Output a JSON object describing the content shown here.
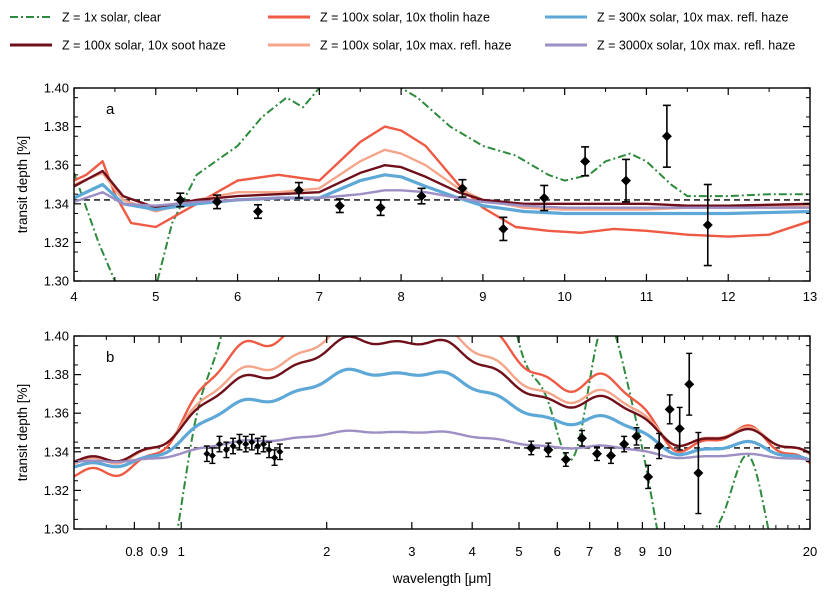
{
  "legend": [
    {
      "key": "clear1x",
      "label": "Z = 1x solar, clear",
      "color": "#2e8b3e",
      "dash": "8,3,2,3"
    },
    {
      "key": "soot100",
      "label": "Z = 100x solar, 10x soot haze",
      "color": "#6e0f1a",
      "dash": ""
    },
    {
      "key": "tholin100",
      "label": "Z = 100x solar, 10x tholin haze",
      "color": "#ee5a44",
      "dash": ""
    },
    {
      "key": "maxrefl100",
      "label": "Z = 100x solar, 10x max. refl. haze",
      "color": "#f4a58a",
      "dash": ""
    },
    {
      "key": "maxrefl300",
      "label": "Z = 300x solar, 10x max. refl. haze",
      "color": "#5ea8d8",
      "dash": ""
    },
    {
      "key": "maxrefl3000",
      "label": "Z = 3000x solar, 10x max. refl. haze",
      "color": "#9d8fc4",
      "dash": ""
    }
  ],
  "chart_data": [
    {
      "panel": "a",
      "type": "line",
      "x_scale": "linear",
      "xlim": [
        4,
        13
      ],
      "ylim": [
        1.3,
        1.4
      ],
      "ylabel": "transit depth [%]",
      "xlabel": "",
      "x_ticks": [
        "4",
        "5",
        "6",
        "7",
        "8",
        "9",
        "10",
        "11",
        "12",
        "13"
      ],
      "y_ticks": [
        "1.30",
        "1.32",
        "1.34",
        "1.36",
        "1.38",
        "1.40"
      ],
      "reference_line": 1.342,
      "series": [
        {
          "key": "clear1x",
          "x": [
            4.0,
            4.3,
            4.6,
            4.9,
            5.2,
            5.5,
            6.0,
            6.3,
            6.6,
            6.8,
            7.0,
            7.4,
            7.8,
            8.2,
            8.6,
            9.0,
            9.4,
            9.8,
            10.0,
            10.3,
            10.5,
            10.8,
            11.0,
            11.3,
            11.5,
            12.0,
            12.5,
            13.0
          ],
          "y": [
            1.356,
            1.32,
            1.29,
            1.28,
            1.33,
            1.355,
            1.37,
            1.385,
            1.395,
            1.39,
            1.4,
            1.42,
            1.405,
            1.395,
            1.38,
            1.37,
            1.365,
            1.355,
            1.352,
            1.355,
            1.362,
            1.366,
            1.362,
            1.35,
            1.344,
            1.344,
            1.345,
            1.345
          ]
        },
        {
          "key": "tholin100",
          "x": [
            4.0,
            4.15,
            4.35,
            4.5,
            4.7,
            5.0,
            5.5,
            6.0,
            6.5,
            7.0,
            7.5,
            7.8,
            8.0,
            8.3,
            8.7,
            9.0,
            9.4,
            9.8,
            10.2,
            10.6,
            11.0,
            11.5,
            12.0,
            12.5,
            13.0
          ],
          "y": [
            1.352,
            1.355,
            1.362,
            1.345,
            1.33,
            1.328,
            1.34,
            1.352,
            1.355,
            1.352,
            1.372,
            1.38,
            1.378,
            1.37,
            1.35,
            1.338,
            1.328,
            1.326,
            1.325,
            1.327,
            1.326,
            1.324,
            1.323,
            1.324,
            1.331
          ]
        },
        {
          "key": "maxrefl100",
          "x": [
            4.0,
            4.35,
            4.6,
            5.0,
            5.5,
            6.0,
            6.5,
            7.0,
            7.5,
            7.8,
            8.0,
            8.3,
            8.7,
            9.0,
            9.5,
            10.0,
            10.5,
            11.0,
            11.5,
            12.0,
            13.0
          ],
          "y": [
            1.35,
            1.356,
            1.342,
            1.336,
            1.342,
            1.346,
            1.346,
            1.348,
            1.362,
            1.368,
            1.366,
            1.36,
            1.348,
            1.342,
            1.338,
            1.337,
            1.337,
            1.337,
            1.338,
            1.338,
            1.339
          ]
        },
        {
          "key": "soot100",
          "x": [
            4.0,
            4.35,
            4.6,
            5.0,
            5.5,
            6.0,
            6.5,
            7.0,
            7.5,
            7.8,
            8.0,
            8.3,
            8.7,
            9.0,
            9.5,
            10.0,
            10.5,
            11.0,
            11.5,
            12.0,
            13.0
          ],
          "y": [
            1.349,
            1.357,
            1.344,
            1.338,
            1.342,
            1.344,
            1.345,
            1.346,
            1.356,
            1.36,
            1.359,
            1.354,
            1.346,
            1.342,
            1.34,
            1.34,
            1.34,
            1.34,
            1.339,
            1.339,
            1.34
          ]
        },
        {
          "key": "maxrefl300",
          "x": [
            4.0,
            4.35,
            4.6,
            5.0,
            5.5,
            6.0,
            6.5,
            7.0,
            7.5,
            7.8,
            8.0,
            8.3,
            8.7,
            9.0,
            9.5,
            10.0,
            10.5,
            11.0,
            11.5,
            12.0,
            13.0
          ],
          "y": [
            1.343,
            1.35,
            1.34,
            1.337,
            1.34,
            1.342,
            1.343,
            1.343,
            1.352,
            1.355,
            1.354,
            1.349,
            1.343,
            1.339,
            1.336,
            1.335,
            1.335,
            1.335,
            1.335,
            1.335,
            1.336
          ]
        },
        {
          "key": "maxrefl3000",
          "x": [
            4.0,
            4.35,
            4.6,
            5.0,
            5.5,
            6.0,
            6.5,
            7.0,
            7.5,
            7.8,
            8.0,
            8.3,
            8.7,
            9.0,
            9.5,
            10.0,
            10.5,
            11.0,
            11.5,
            12.0,
            13.0
          ],
          "y": [
            1.341,
            1.346,
            1.34,
            1.339,
            1.341,
            1.342,
            1.343,
            1.343,
            1.345,
            1.347,
            1.347,
            1.346,
            1.343,
            1.341,
            1.339,
            1.338,
            1.338,
            1.338,
            1.338,
            1.338,
            1.338
          ]
        }
      ],
      "observations": [
        {
          "x": 5.3,
          "y": 1.342,
          "err": 0.0035
        },
        {
          "x": 5.75,
          "y": 1.341,
          "err": 0.0035
        },
        {
          "x": 6.25,
          "y": 1.336,
          "err": 0.0035
        },
        {
          "x": 6.75,
          "y": 1.347,
          "err": 0.004
        },
        {
          "x": 7.25,
          "y": 1.339,
          "err": 0.0035
        },
        {
          "x": 7.75,
          "y": 1.338,
          "err": 0.004
        },
        {
          "x": 8.25,
          "y": 1.344,
          "err": 0.004
        },
        {
          "x": 8.75,
          "y": 1.348,
          "err": 0.0045
        },
        {
          "x": 9.25,
          "y": 1.327,
          "err": 0.006
        },
        {
          "x": 9.75,
          "y": 1.343,
          "err": 0.0065
        },
        {
          "x": 10.25,
          "y": 1.362,
          "err": 0.0075
        },
        {
          "x": 10.75,
          "y": 1.352,
          "err": 0.011
        },
        {
          "x": 11.25,
          "y": 1.375,
          "err": 0.016
        },
        {
          "x": 11.75,
          "y": 1.329,
          "err": 0.021
        }
      ]
    },
    {
      "panel": "b",
      "type": "line",
      "x_scale": "log",
      "xlim": [
        0.6,
        20
      ],
      "ylim": [
        1.3,
        1.4
      ],
      "ylabel": "transit depth [%]",
      "xlabel": "wavelength [μm]",
      "x_tick_values": [
        0.8,
        0.9,
        1,
        2,
        3,
        4,
        5,
        6,
        7,
        8,
        9,
        10,
        20
      ],
      "x_ticks": [
        "0.8",
        "0.9",
        "1",
        "2",
        "3",
        "4",
        "5",
        "6",
        "7",
        "8",
        "9",
        "10",
        "20"
      ],
      "y_ticks": [
        "1.30",
        "1.32",
        "1.34",
        "1.36",
        "1.38",
        "1.40"
      ],
      "reference_line": 1.342,
      "band_centers": [
        1.15,
        1.4,
        1.85,
        2.35,
        3.3,
        4.4,
        5.5,
        7.8,
        14.5
      ],
      "band_amplitude_factors": [
        0.55,
        0.8,
        0.85,
        1.4,
        1.5,
        0.85,
        0.5,
        0.9,
        0.45
      ],
      "series_shape": [
        {
          "key": "tholin100",
          "base": 1.329,
          "amp": 0.05,
          "width": 0.075
        },
        {
          "key": "maxrefl100",
          "base": 1.335,
          "amp": 0.036,
          "width": 0.075
        },
        {
          "key": "soot100",
          "base": 1.336,
          "amp": 0.032,
          "width": 0.075
        },
        {
          "key": "maxrefl300",
          "base": 1.333,
          "amp": 0.025,
          "width": 0.075
        },
        {
          "key": "maxrefl3000",
          "base": 1.335,
          "amp": 0.008,
          "width": 0.075
        },
        {
          "key": "clear1x",
          "base": 1.26,
          "amp": 0.16,
          "width": 0.055
        }
      ],
      "observations": [
        {
          "x": 1.13,
          "y": 1.339,
          "err": 0.004
        },
        {
          "x": 1.16,
          "y": 1.338,
          "err": 0.004
        },
        {
          "x": 1.2,
          "y": 1.344,
          "err": 0.004
        },
        {
          "x": 1.24,
          "y": 1.341,
          "err": 0.004
        },
        {
          "x": 1.28,
          "y": 1.343,
          "err": 0.004
        },
        {
          "x": 1.32,
          "y": 1.345,
          "err": 0.004
        },
        {
          "x": 1.36,
          "y": 1.344,
          "err": 0.004
        },
        {
          "x": 1.4,
          "y": 1.345,
          "err": 0.004
        },
        {
          "x": 1.44,
          "y": 1.343,
          "err": 0.004
        },
        {
          "x": 1.48,
          "y": 1.344,
          "err": 0.004
        },
        {
          "x": 1.52,
          "y": 1.341,
          "err": 0.004
        },
        {
          "x": 1.56,
          "y": 1.337,
          "err": 0.004
        },
        {
          "x": 1.6,
          "y": 1.34,
          "err": 0.004
        },
        {
          "x": 5.3,
          "y": 1.342,
          "err": 0.0035
        },
        {
          "x": 5.75,
          "y": 1.341,
          "err": 0.0035
        },
        {
          "x": 6.25,
          "y": 1.336,
          "err": 0.0035
        },
        {
          "x": 6.75,
          "y": 1.347,
          "err": 0.004
        },
        {
          "x": 7.25,
          "y": 1.339,
          "err": 0.0035
        },
        {
          "x": 7.75,
          "y": 1.338,
          "err": 0.004
        },
        {
          "x": 8.25,
          "y": 1.344,
          "err": 0.004
        },
        {
          "x": 8.75,
          "y": 1.348,
          "err": 0.0045
        },
        {
          "x": 9.25,
          "y": 1.327,
          "err": 0.006
        },
        {
          "x": 9.75,
          "y": 1.343,
          "err": 0.0065
        },
        {
          "x": 10.25,
          "y": 1.362,
          "err": 0.0075
        },
        {
          "x": 10.75,
          "y": 1.352,
          "err": 0.011
        },
        {
          "x": 11.25,
          "y": 1.375,
          "err": 0.016
        },
        {
          "x": 11.75,
          "y": 1.329,
          "err": 0.021
        }
      ]
    }
  ]
}
